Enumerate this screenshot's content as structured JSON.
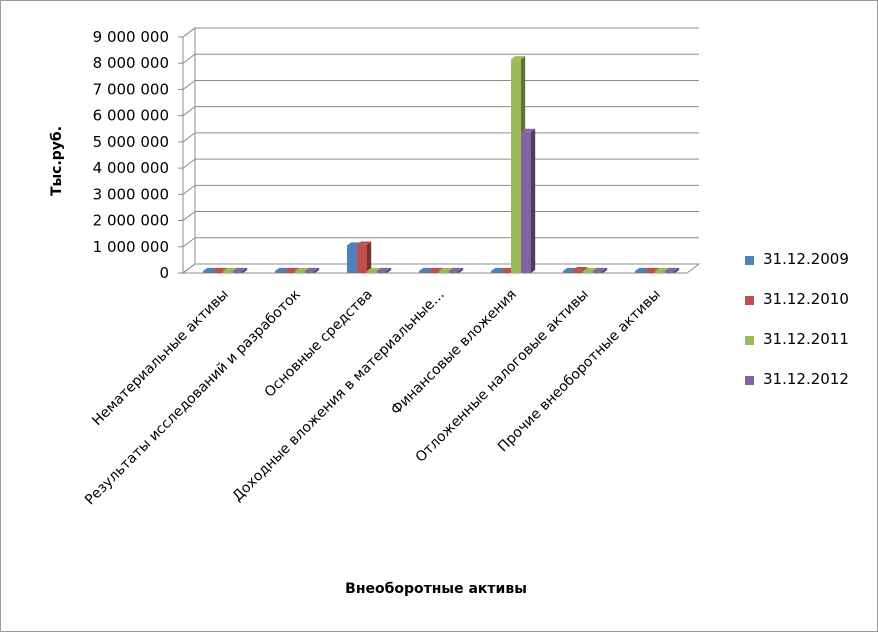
{
  "chart_data": {
    "type": "bar",
    "title": "",
    "xlabel": "Внеоборотные активы",
    "ylabel": "Тыс.руб.",
    "ylim": [
      0,
      9000000
    ],
    "yticks": [
      "0",
      "1 000 000",
      "2 000 000",
      "3 000 000",
      "4 000 000",
      "5 000 000",
      "6 000 000",
      "7 000 000",
      "8 000 000",
      "9 000 000"
    ],
    "categories": [
      "Нематериальные активы",
      "Результаты исследований и разработок",
      "Основные средства",
      "Доходные вложения в материальные…",
      "Финансовые вложения",
      "Отложенные налоговые активы",
      "Прочие внеоборотные активы"
    ],
    "series": [
      {
        "name": "31.12.2009",
        "color": "#4f81bd",
        "values": [
          3000,
          0,
          1050000,
          20000,
          2000,
          30000,
          10000
        ]
      },
      {
        "name": "31.12.2010",
        "color": "#c0504d",
        "values": [
          3000,
          0,
          1080000,
          20000,
          2000,
          110000,
          40000
        ]
      },
      {
        "name": "31.12.2011",
        "color": "#9bbb59",
        "values": [
          2000,
          0,
          40000,
          15000,
          8150000,
          35000,
          15000
        ]
      },
      {
        "name": "31.12.2012",
        "color": "#8064a2",
        "values": [
          2000,
          0,
          30000,
          10000,
          5380000,
          10000,
          8000
        ]
      }
    ],
    "grid": true,
    "legend": "right"
  }
}
